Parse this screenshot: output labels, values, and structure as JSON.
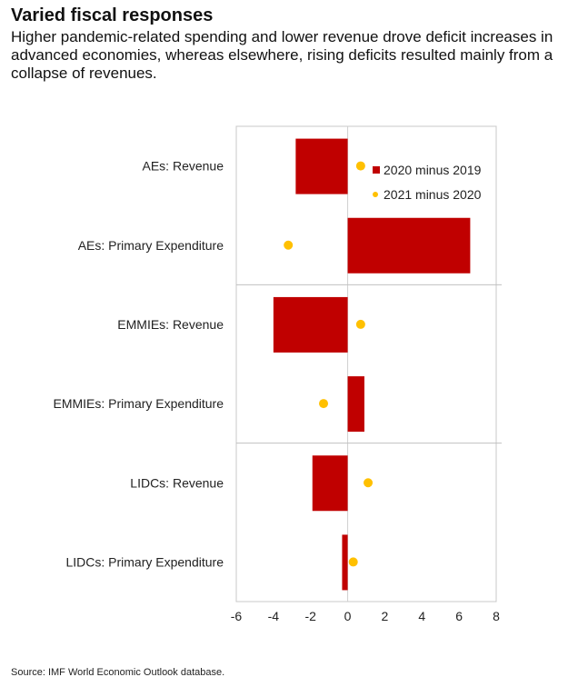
{
  "title": "Varied fiscal responses",
  "subtitle": "Higher pandemic-related spending and lower revenue drove deficit increases in advanced economies, whereas elsewhere, rising deficits resulted mainly from a collapse of revenues.",
  "source": "Source: IMF World Economic Outlook database.",
  "chart_data": {
    "type": "bar",
    "orientation": "horizontal",
    "categories": [
      "AEs: Revenue",
      "AEs: Primary Expenditure",
      "EMMIEs: Revenue",
      "EMMIEs: Primary Expenditure",
      "LIDCs: Revenue",
      "LIDCs: Primary Expenditure"
    ],
    "series": [
      {
        "name": "2020 minus 2019",
        "mark": "bar",
        "color": "#c00000",
        "values": [
          -2.8,
          6.6,
          -4.0,
          0.9,
          -1.9,
          -0.3
        ]
      },
      {
        "name": "2021 minus 2020",
        "mark": "dot",
        "color": "#ffc000",
        "values": [
          0.7,
          -3.2,
          0.7,
          -1.3,
          1.1,
          0.3
        ]
      }
    ],
    "xlim": [
      -6,
      8
    ],
    "xticks": [
      "-6",
      "-4",
      "-2",
      "0",
      "2",
      "4",
      "6",
      "8"
    ],
    "legend": "top-right",
    "grid": false
  }
}
